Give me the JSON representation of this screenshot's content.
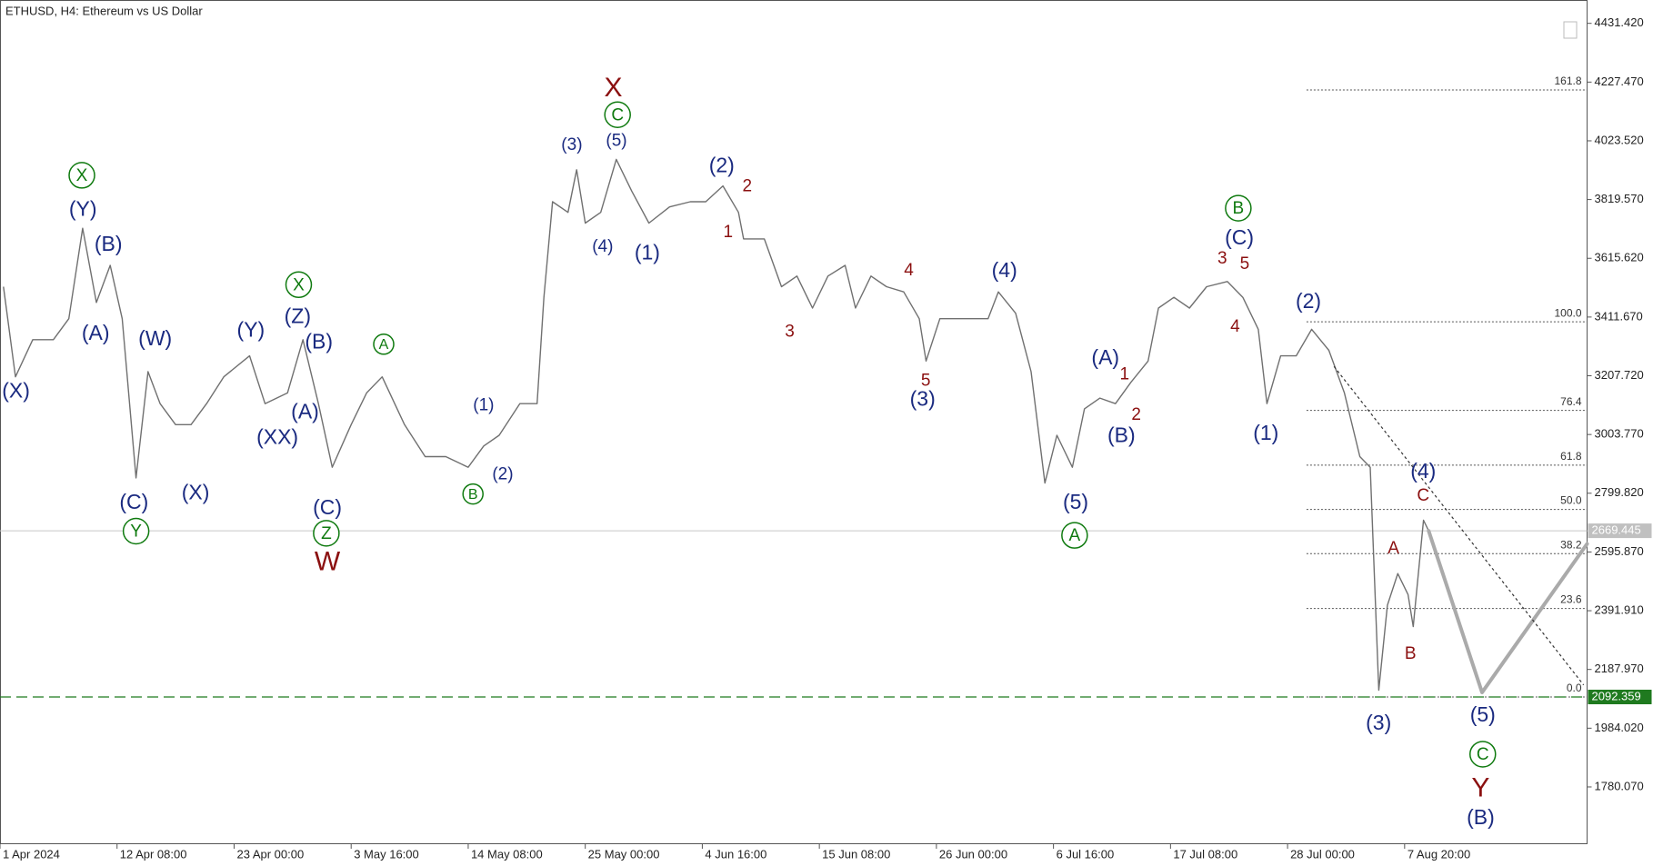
{
  "chart_data": {
    "type": "line",
    "title": "ETHUSD, H4:  Ethereum vs US Dollar",
    "series": [
      {
        "name": "ETHUSD",
        "color": "#707070",
        "x": [
          2,
          9,
          19,
          31,
          40,
          48,
          56,
          64,
          71,
          79,
          86,
          93,
          102,
          111,
          120,
          130,
          145,
          154,
          167,
          176,
          185,
          193,
          204,
          213,
          222,
          235,
          247,
          259,
          272,
          281,
          290,
          302,
          312,
          316,
          321,
          330,
          335,
          340,
          349,
          358,
          367,
          377,
          389,
          401,
          410,
          420,
          429,
          432,
          444,
          454,
          463,
          472,
          481,
          491,
          497,
          506,
          515,
          525,
          534,
          538,
          546,
          556,
          565,
          574,
          580,
          590,
          599,
          607,
          614,
          623,
          630,
          639,
          648,
          657,
          667,
          673,
          682,
          691,
          701,
          713,
          722,
          731,
          736,
          744,
          753,
          762,
          772,
          781,
          790,
          796,
          801,
          806,
          812,
          818,
          821,
          827,
          830
        ],
        "values": [
          3517,
          3204,
          3333,
          3333,
          3406,
          3720,
          3462,
          3591,
          3406,
          2853,
          3222,
          3111,
          3038,
          3038,
          3111,
          3204,
          3277,
          3111,
          3148,
          3333,
          3111,
          2890,
          3038,
          3148,
          3204,
          3038,
          2927,
          2927,
          2890,
          2964,
          3001,
          3111,
          3111,
          3480,
          3812,
          3775,
          3923,
          3738,
          3775,
          3959,
          3849,
          3738,
          3794,
          3812,
          3812,
          3867,
          3775,
          3683,
          3683,
          3517,
          3554,
          3443,
          3554,
          3591,
          3443,
          3554,
          3517,
          3499,
          3406,
          3259,
          3406,
          3406,
          3406,
          3406,
          3499,
          3425,
          3222,
          2835,
          3001,
          2890,
          3093,
          3130,
          3111,
          3185,
          3259,
          3443,
          3480,
          3443,
          3517,
          3535,
          3480,
          3369,
          3111,
          3277,
          3277,
          3369,
          3296,
          3148,
          2927,
          2890,
          2116,
          2411,
          2521,
          2448,
          2337,
          2706,
          2669
        ]
      },
      {
        "name": "projection",
        "color": "#aaaaaa",
        "x": [
          830,
          861,
          922
        ],
        "values": [
          2669,
          2108,
          2624
        ]
      },
      {
        "name": "trend",
        "color": "#333333",
        "x": [
          775,
          920
        ],
        "values": [
          3240,
          2134
        ]
      }
    ],
    "xlim": [
      0,
      922
    ],
    "xticks": [
      {
        "value": 0,
        "label": "1 Apr 2024"
      },
      {
        "value": 68,
        "label": "12 Apr 08:00"
      },
      {
        "value": 136,
        "label": "23 Apr 00:00"
      },
      {
        "value": 204,
        "label": "3 May 16:00"
      },
      {
        "value": 272,
        "label": "14 May 08:00"
      },
      {
        "value": 340,
        "label": "25 May 00:00"
      },
      {
        "value": 408,
        "label": "4 Jun 16:00"
      },
      {
        "value": 476,
        "label": "15 Jun 08:00"
      },
      {
        "value": 544,
        "label": "26 Jun 00:00"
      },
      {
        "value": 612,
        "label": "6 Jul 16:00"
      },
      {
        "value": 680,
        "label": "17 Jul 08:00"
      },
      {
        "value": 748,
        "label": "28 Jul 00:00"
      },
      {
        "value": 816,
        "label": "7 Aug 20:00"
      }
    ],
    "ylim": [
      1581.2,
      4512.5
    ],
    "yticks": [
      {
        "value": 1780.07,
        "label": "1780.070"
      },
      {
        "value": 1984.02,
        "label": "1984.020"
      },
      {
        "value": 2187.97,
        "label": "2187.970"
      },
      {
        "value": 2391.91,
        "label": "2391.910"
      },
      {
        "value": 2595.87,
        "label": "2595.870"
      },
      {
        "value": 2799.82,
        "label": "2799.820"
      },
      {
        "value": 3003.77,
        "label": "3003.770"
      },
      {
        "value": 3207.72,
        "label": "3207.720"
      },
      {
        "value": 3411.67,
        "label": "3411.670"
      },
      {
        "value": 3615.62,
        "label": "3615.620"
      },
      {
        "value": 3819.57,
        "label": "3819.570"
      },
      {
        "value": 4023.52,
        "label": "4023.520"
      },
      {
        "value": 4227.47,
        "label": "4227.470"
      },
      {
        "value": 4431.42,
        "label": "4431.420"
      }
    ],
    "current_price": 2669.445,
    "support_price": 2092.359,
    "fib_start": 759,
    "fib_levels": [
      {
        "value": 4200,
        "label": "161.8"
      },
      {
        "value": 3395,
        "label": "100.0"
      },
      {
        "value": 3087.6,
        "label": "76.4"
      },
      {
        "value": 2897.5,
        "label": "61.8"
      },
      {
        "value": 2743.7,
        "label": "50.0"
      },
      {
        "value": 2590,
        "label": "38.2"
      },
      {
        "value": 2399.8,
        "label": "23.6"
      },
      {
        "value": 2092.36,
        "label": "0.0"
      }
    ],
    "annotations": [
      {
        "text": "(X)",
        "color": "#1a2a80"
      },
      {
        "text": "(Y)",
        "color": "#1a2a80"
      },
      {
        "text": "(B)",
        "color": "#1a2a80"
      },
      {
        "text": "(A)",
        "color": "#1a2a80"
      },
      {
        "text": "(W)",
        "color": "#1a2a80"
      },
      {
        "text": "(C)",
        "color": "#1a2a80"
      },
      {
        "text": "(X)",
        "color": "#1a2a80"
      },
      {
        "text": "(Y)",
        "color": "#1a2a80"
      },
      {
        "text": "(XX)",
        "color": "#1a2a80"
      },
      {
        "text": "(Z)",
        "color": "#1a2a80"
      },
      {
        "text": "(B)",
        "color": "#1a2a80"
      },
      {
        "text": "(A)",
        "color": "#1a2a80"
      },
      {
        "text": "(C)",
        "color": "#1a2a80"
      },
      {
        "text": "(1)",
        "color": "#1a2a80"
      },
      {
        "text": "(2)",
        "color": "#1a2a80"
      },
      {
        "text": "(3)",
        "color": "#1a2a80"
      },
      {
        "text": "(5)",
        "color": "#1a2a80"
      },
      {
        "text": "(4)",
        "color": "#1a2a80"
      },
      {
        "text": "(1)",
        "color": "#1a2a80"
      },
      {
        "text": "(2)",
        "color": "#1a2a80"
      },
      {
        "text": "(3)",
        "color": "#1a2a80"
      },
      {
        "text": "(4)",
        "color": "#1a2a80"
      },
      {
        "text": "(5)",
        "color": "#1a2a80"
      },
      {
        "text": "(A)",
        "color": "#1a2a80"
      },
      {
        "text": "(B)",
        "color": "#1a2a80"
      },
      {
        "text": "(C)",
        "color": "#1a2a80"
      },
      {
        "text": "(1)",
        "color": "#1a2a80"
      },
      {
        "text": "(2)",
        "color": "#1a2a80"
      },
      {
        "text": "(3)",
        "color": "#1a2a80"
      },
      {
        "text": "(4)",
        "color": "#1a2a80"
      },
      {
        "text": "(5)",
        "color": "#1a2a80"
      },
      {
        "text": "(B)",
        "color": "#1a2a80"
      },
      {
        "text": "X",
        "color": "#8b1010"
      },
      {
        "text": "W",
        "color": "#8b1010"
      },
      {
        "text": "Y",
        "color": "#8b1010"
      },
      {
        "text": "2",
        "color": "#8b1010"
      },
      {
        "text": "1",
        "color": "#8b1010"
      },
      {
        "text": "3",
        "color": "#8b1010"
      },
      {
        "text": "4",
        "color": "#8b1010"
      },
      {
        "text": "5",
        "color": "#8b1010"
      },
      {
        "text": "1",
        "color": "#8b1010"
      },
      {
        "text": "2",
        "color": "#8b1010"
      },
      {
        "text": "3",
        "color": "#8b1010"
      },
      {
        "text": "5",
        "color": "#8b1010"
      },
      {
        "text": "4",
        "color": "#8b1010"
      },
      {
        "text": "A",
        "color": "#8b1010"
      },
      {
        "text": "C",
        "color": "#8b1010"
      },
      {
        "text": "B",
        "color": "#8b1010"
      },
      {
        "text": "X",
        "color": "#0f7a0f",
        "circled": true
      },
      {
        "text": "X",
        "color": "#0f7a0f",
        "circled": true
      },
      {
        "text": "Y",
        "color": "#0f7a0f",
        "circled": true
      },
      {
        "text": "Z",
        "color": "#0f7a0f",
        "circled": true
      },
      {
        "text": "C",
        "color": "#0f7a0f",
        "circled": true
      },
      {
        "text": "A",
        "color": "#0f7a0f",
        "circled": true
      },
      {
        "text": "B",
        "color": "#0f7a0f",
        "circled": true
      },
      {
        "text": "B",
        "color": "#0f7a0f",
        "circled": true
      },
      {
        "text": "A",
        "color": "#0f7a0f",
        "circled": true
      },
      {
        "text": "C",
        "color": "#0f7a0f",
        "circled": true
      }
    ]
  }
}
